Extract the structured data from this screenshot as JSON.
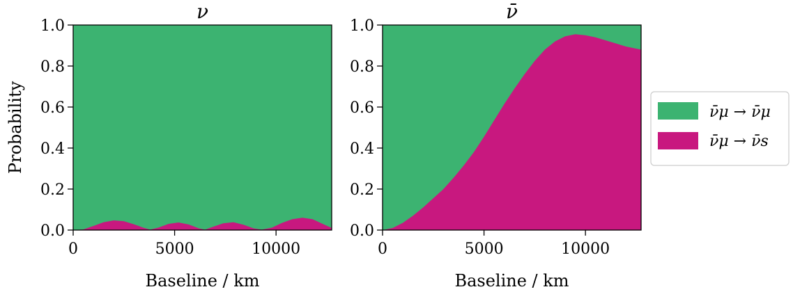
{
  "chart_data": [
    {
      "type": "area",
      "title": "ν",
      "xlabel": "Baseline / km",
      "ylabel": "Probability",
      "xlim": [
        0,
        12742
      ],
      "ylim": [
        0,
        1
      ],
      "xticks": [
        0,
        5000,
        10000
      ],
      "yticks": [
        0.0,
        0.2,
        0.4,
        0.6,
        0.8,
        1.0
      ],
      "xtick_labels": [
        "0",
        "5000",
        "10000"
      ],
      "ytick_labels": [
        "0.0",
        "0.2",
        "0.4",
        "0.6",
        "0.8",
        "1.0"
      ],
      "stacked": true,
      "x": [
        0,
        500,
        1000,
        1500,
        2000,
        2500,
        3000,
        3500,
        3800,
        4200,
        4700,
        5200,
        5700,
        6200,
        6500,
        6900,
        7400,
        7900,
        8400,
        8900,
        9300,
        9800,
        10300,
        10800,
        11300,
        11800,
        12300,
        12742
      ],
      "series": [
        {
          "name": "ν̄μ → ν̄s",
          "color": "#c8187f",
          "values": [
            0.0,
            0.003,
            0.02,
            0.038,
            0.047,
            0.043,
            0.028,
            0.01,
            0.002,
            0.012,
            0.03,
            0.037,
            0.027,
            0.008,
            0.002,
            0.016,
            0.033,
            0.038,
            0.026,
            0.008,
            0.002,
            0.012,
            0.035,
            0.053,
            0.06,
            0.053,
            0.03,
            0.01
          ]
        },
        {
          "name": "ν̄μ → ν̄μ",
          "color": "#3cb371",
          "values": "remainder to 1.0"
        }
      ]
    },
    {
      "type": "area",
      "title": "ν̄",
      "xlabel": "Baseline / km",
      "ylabel": "",
      "xlim": [
        0,
        12742
      ],
      "ylim": [
        0,
        1
      ],
      "xticks": [
        0,
        5000,
        10000
      ],
      "yticks": [
        0.0,
        0.2,
        0.4,
        0.6,
        0.8,
        1.0
      ],
      "xtick_labels": [
        "0",
        "5000",
        "10000"
      ],
      "ytick_labels": [
        "0.0",
        "0.2",
        "0.4",
        "0.6",
        "0.8",
        "1.0"
      ],
      "stacked": true,
      "x": [
        0,
        500,
        1000,
        1500,
        2000,
        2500,
        3000,
        3500,
        4000,
        4500,
        5000,
        5500,
        6000,
        6500,
        7000,
        7500,
        8000,
        8500,
        9000,
        9500,
        10000,
        10500,
        11000,
        11500,
        12000,
        12742
      ],
      "series": [
        {
          "name": "ν̄μ → ν̄s",
          "color": "#c8187f",
          "values": [
            0.0,
            0.01,
            0.035,
            0.07,
            0.11,
            0.155,
            0.2,
            0.255,
            0.315,
            0.38,
            0.455,
            0.535,
            0.615,
            0.69,
            0.76,
            0.825,
            0.88,
            0.92,
            0.945,
            0.955,
            0.95,
            0.94,
            0.925,
            0.91,
            0.895,
            0.88
          ]
        },
        {
          "name": "ν̄μ → ν̄μ",
          "color": "#3cb371",
          "values": "remainder to 1.0"
        }
      ]
    }
  ],
  "legend": {
    "placement": "right",
    "entries": [
      {
        "label": "ν̄μ → ν̄μ",
        "color": "#3cb371"
      },
      {
        "label": "ν̄μ → ν̄s",
        "color": "#c8187f"
      }
    ]
  }
}
